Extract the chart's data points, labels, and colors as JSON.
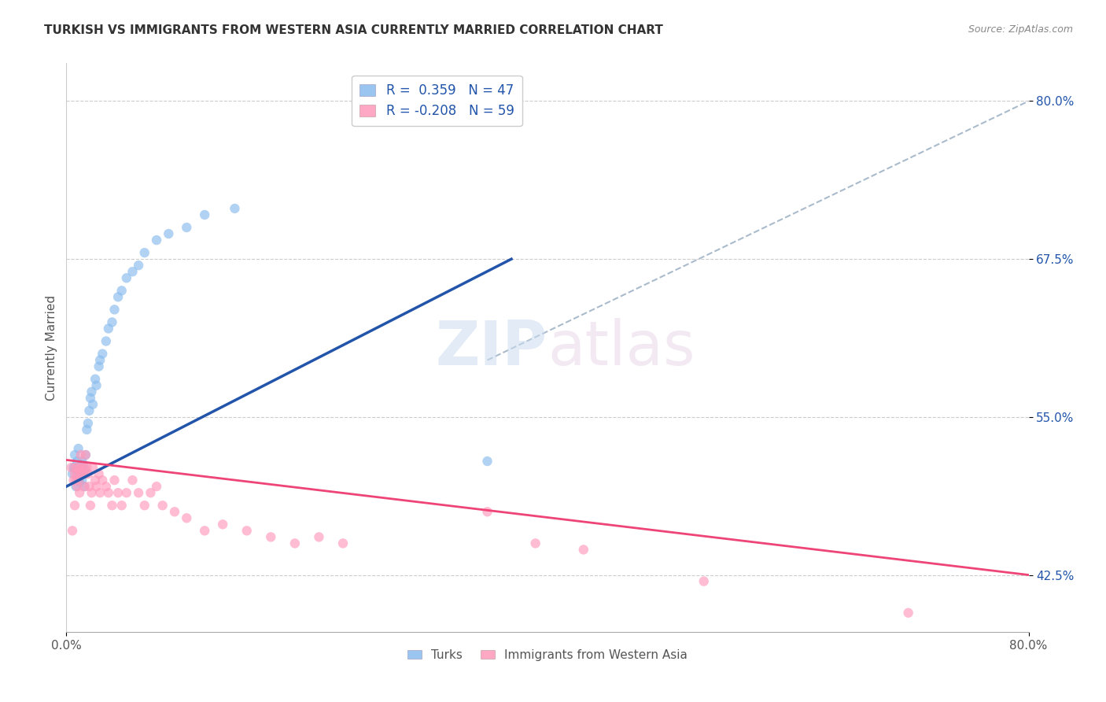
{
  "title": "TURKISH VS IMMIGRANTS FROM WESTERN ASIA CURRENTLY MARRIED CORRELATION CHART",
  "source": "Source: ZipAtlas.com",
  "ylabel": "Currently Married",
  "xlim": [
    0.0,
    0.8
  ],
  "ylim": [
    0.38,
    0.83
  ],
  "xtick_positions": [
    0.0,
    0.8
  ],
  "xticklabels": [
    "0.0%",
    "80.0%"
  ],
  "ytick_positions": [
    0.425,
    0.55,
    0.675,
    0.8
  ],
  "yticklabels": [
    "42.5%",
    "55.0%",
    "67.5%",
    "80.0%"
  ],
  "legend_r1": "R =  0.359",
  "legend_n1": "N = 47",
  "legend_r2": "R = -0.208",
  "legend_n2": "N = 59",
  "blue_color": "#88BBEE",
  "pink_color": "#FF99BB",
  "blue_line_color": "#2255AA",
  "pink_line_color": "#EE4477",
  "diag_color": "#AABBCC",
  "background_color": "#FFFFFF",
  "title_fontsize": 11,
  "blue_line_x": [
    0.0,
    0.37
  ],
  "blue_line_y": [
    0.495,
    0.675
  ],
  "pink_line_x": [
    0.0,
    0.8
  ],
  "pink_line_y": [
    0.516,
    0.425
  ],
  "diag_line_x": [
    0.35,
    0.8
  ],
  "diag_line_y": [
    0.595,
    0.8
  ],
  "blue_pts_x": [
    0.005,
    0.006,
    0.007,
    0.007,
    0.008,
    0.009,
    0.009,
    0.01,
    0.01,
    0.01,
    0.011,
    0.011,
    0.012,
    0.013,
    0.013,
    0.014,
    0.014,
    0.015,
    0.015,
    0.016,
    0.017,
    0.018,
    0.019,
    0.02,
    0.021,
    0.022,
    0.024,
    0.025,
    0.027,
    0.028,
    0.03,
    0.033,
    0.035,
    0.038,
    0.04,
    0.043,
    0.046,
    0.05,
    0.055,
    0.06,
    0.065,
    0.075,
    0.085,
    0.1,
    0.115,
    0.14,
    0.35
  ],
  "blue_pts_y": [
    0.505,
    0.51,
    0.51,
    0.52,
    0.495,
    0.508,
    0.515,
    0.5,
    0.51,
    0.525,
    0.498,
    0.505,
    0.51,
    0.5,
    0.515,
    0.505,
    0.512,
    0.495,
    0.508,
    0.52,
    0.54,
    0.545,
    0.555,
    0.565,
    0.57,
    0.56,
    0.58,
    0.575,
    0.59,
    0.595,
    0.6,
    0.61,
    0.62,
    0.625,
    0.635,
    0.645,
    0.65,
    0.66,
    0.665,
    0.67,
    0.68,
    0.69,
    0.695,
    0.7,
    0.71,
    0.715,
    0.515
  ],
  "pink_pts_x": [
    0.004,
    0.005,
    0.006,
    0.007,
    0.007,
    0.008,
    0.008,
    0.009,
    0.009,
    0.01,
    0.01,
    0.011,
    0.011,
    0.012,
    0.012,
    0.013,
    0.014,
    0.015,
    0.015,
    0.016,
    0.016,
    0.017,
    0.018,
    0.019,
    0.02,
    0.021,
    0.022,
    0.024,
    0.025,
    0.027,
    0.028,
    0.03,
    0.033,
    0.035,
    0.038,
    0.04,
    0.043,
    0.046,
    0.05,
    0.055,
    0.06,
    0.065,
    0.07,
    0.075,
    0.08,
    0.09,
    0.1,
    0.115,
    0.13,
    0.15,
    0.17,
    0.19,
    0.21,
    0.23,
    0.35,
    0.39,
    0.43,
    0.53,
    0.7
  ],
  "pink_pts_y": [
    0.51,
    0.46,
    0.5,
    0.505,
    0.48,
    0.5,
    0.51,
    0.495,
    0.505,
    0.51,
    0.5,
    0.49,
    0.508,
    0.505,
    0.52,
    0.51,
    0.505,
    0.51,
    0.495,
    0.505,
    0.52,
    0.51,
    0.505,
    0.495,
    0.48,
    0.49,
    0.51,
    0.5,
    0.495,
    0.505,
    0.49,
    0.5,
    0.495,
    0.49,
    0.48,
    0.5,
    0.49,
    0.48,
    0.49,
    0.5,
    0.49,
    0.48,
    0.49,
    0.495,
    0.48,
    0.475,
    0.47,
    0.46,
    0.465,
    0.46,
    0.455,
    0.45,
    0.455,
    0.45,
    0.475,
    0.45,
    0.445,
    0.42,
    0.395
  ]
}
